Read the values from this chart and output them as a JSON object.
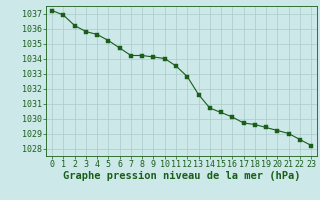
{
  "x": [
    0,
    1,
    2,
    3,
    4,
    5,
    6,
    7,
    8,
    9,
    10,
    11,
    12,
    13,
    14,
    15,
    16,
    17,
    18,
    19,
    20,
    21,
    22,
    23
  ],
  "y": [
    1037.2,
    1036.9,
    1036.2,
    1035.8,
    1035.6,
    1035.2,
    1034.7,
    1034.2,
    1034.2,
    1034.1,
    1034.0,
    1033.5,
    1032.8,
    1031.6,
    1030.7,
    1030.4,
    1030.1,
    1029.7,
    1029.6,
    1029.4,
    1029.2,
    1029.0,
    1028.6,
    1028.2
  ],
  "line_color": "#1a5e1a",
  "marker": "s",
  "marker_size": 2.2,
  "background_color": "#cce8e8",
  "grid_color": "#aacccc",
  "xlabel": "Graphe pression niveau de la mer (hPa)",
  "xlabel_fontsize": 7.5,
  "tick_fontsize": 6.0,
  "ylim": [
    1027.5,
    1037.5
  ],
  "yticks": [
    1028,
    1029,
    1030,
    1031,
    1032,
    1033,
    1034,
    1035,
    1036,
    1037
  ],
  "xlim": [
    -0.5,
    23.5
  ],
  "xticks": [
    0,
    1,
    2,
    3,
    4,
    5,
    6,
    7,
    8,
    9,
    10,
    11,
    12,
    13,
    14,
    15,
    16,
    17,
    18,
    19,
    20,
    21,
    22,
    23
  ]
}
